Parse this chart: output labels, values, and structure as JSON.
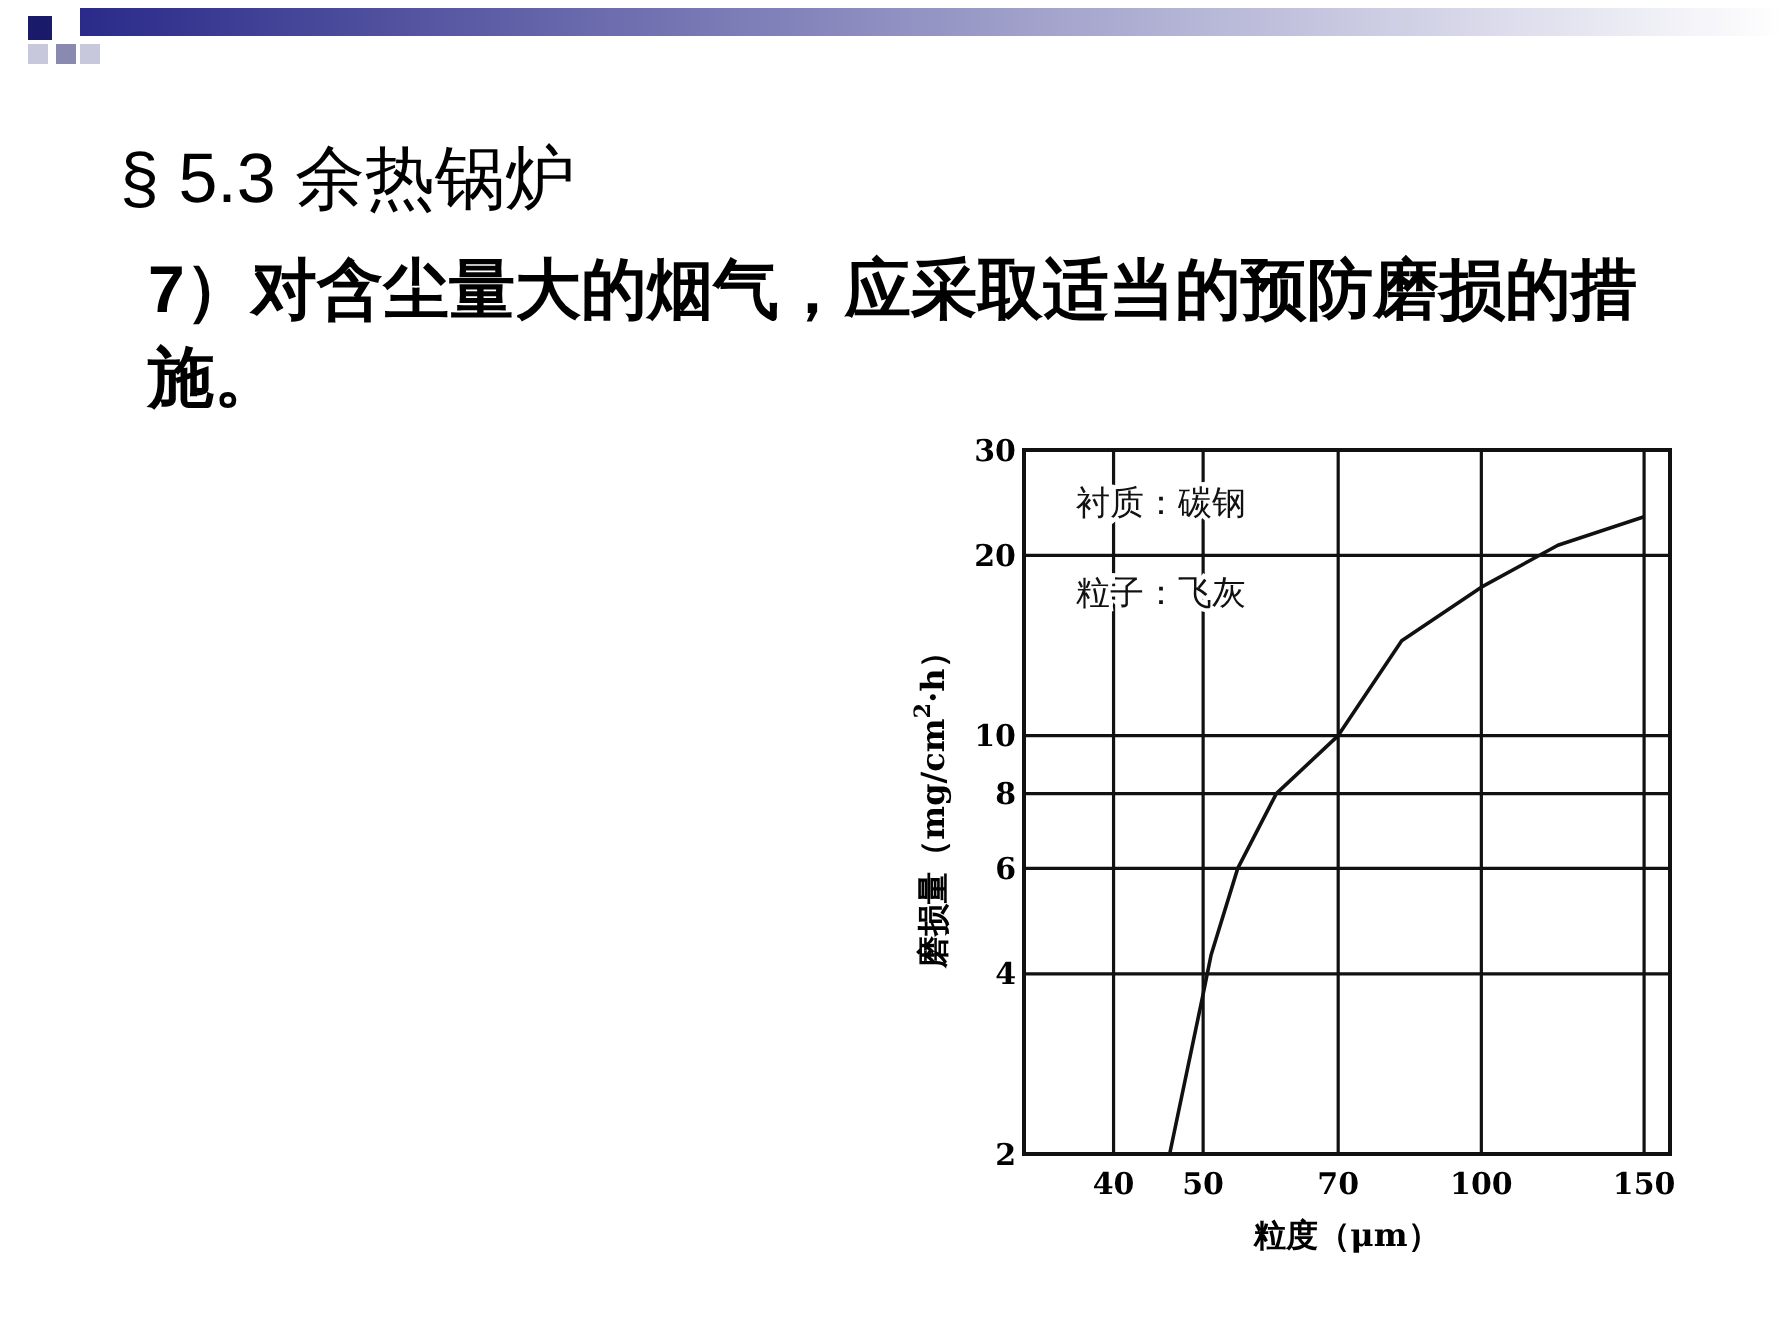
{
  "chart_data": {
    "type": "line",
    "title": "§ 5.3 余热锅炉",
    "subtitle": "7）对含尘量大的烟气，应采取适当的预防磨损的措施。",
    "xlabel": "粒度（μm）",
    "ylabel": "磨损量（mg/cm$^{2}$·h）",
    "annotations": [
      "衬质：碳钢",
      "粒子：飞灰"
    ],
    "log": "xy",
    "xlim": [
      32,
      160
    ],
    "xticks": [
      40,
      50,
      70,
      100,
      150
    ],
    "ylim": [
      2,
      30
    ],
    "yticks": [
      2,
      4,
      6,
      8,
      10,
      20,
      30
    ],
    "grid": true,
    "marker": "none",
    "line_style": "solid",
    "series": [
      {
        "color": "#111111",
        "x": [
          46,
          50,
          51,
          54.5,
          60,
          70,
          82,
          100,
          121,
          150
        ],
        "values": [
          2,
          3.7,
          4.3,
          6,
          8,
          10,
          14.4,
          17.7,
          20.8,
          23.2
        ]
      }
    ]
  }
}
